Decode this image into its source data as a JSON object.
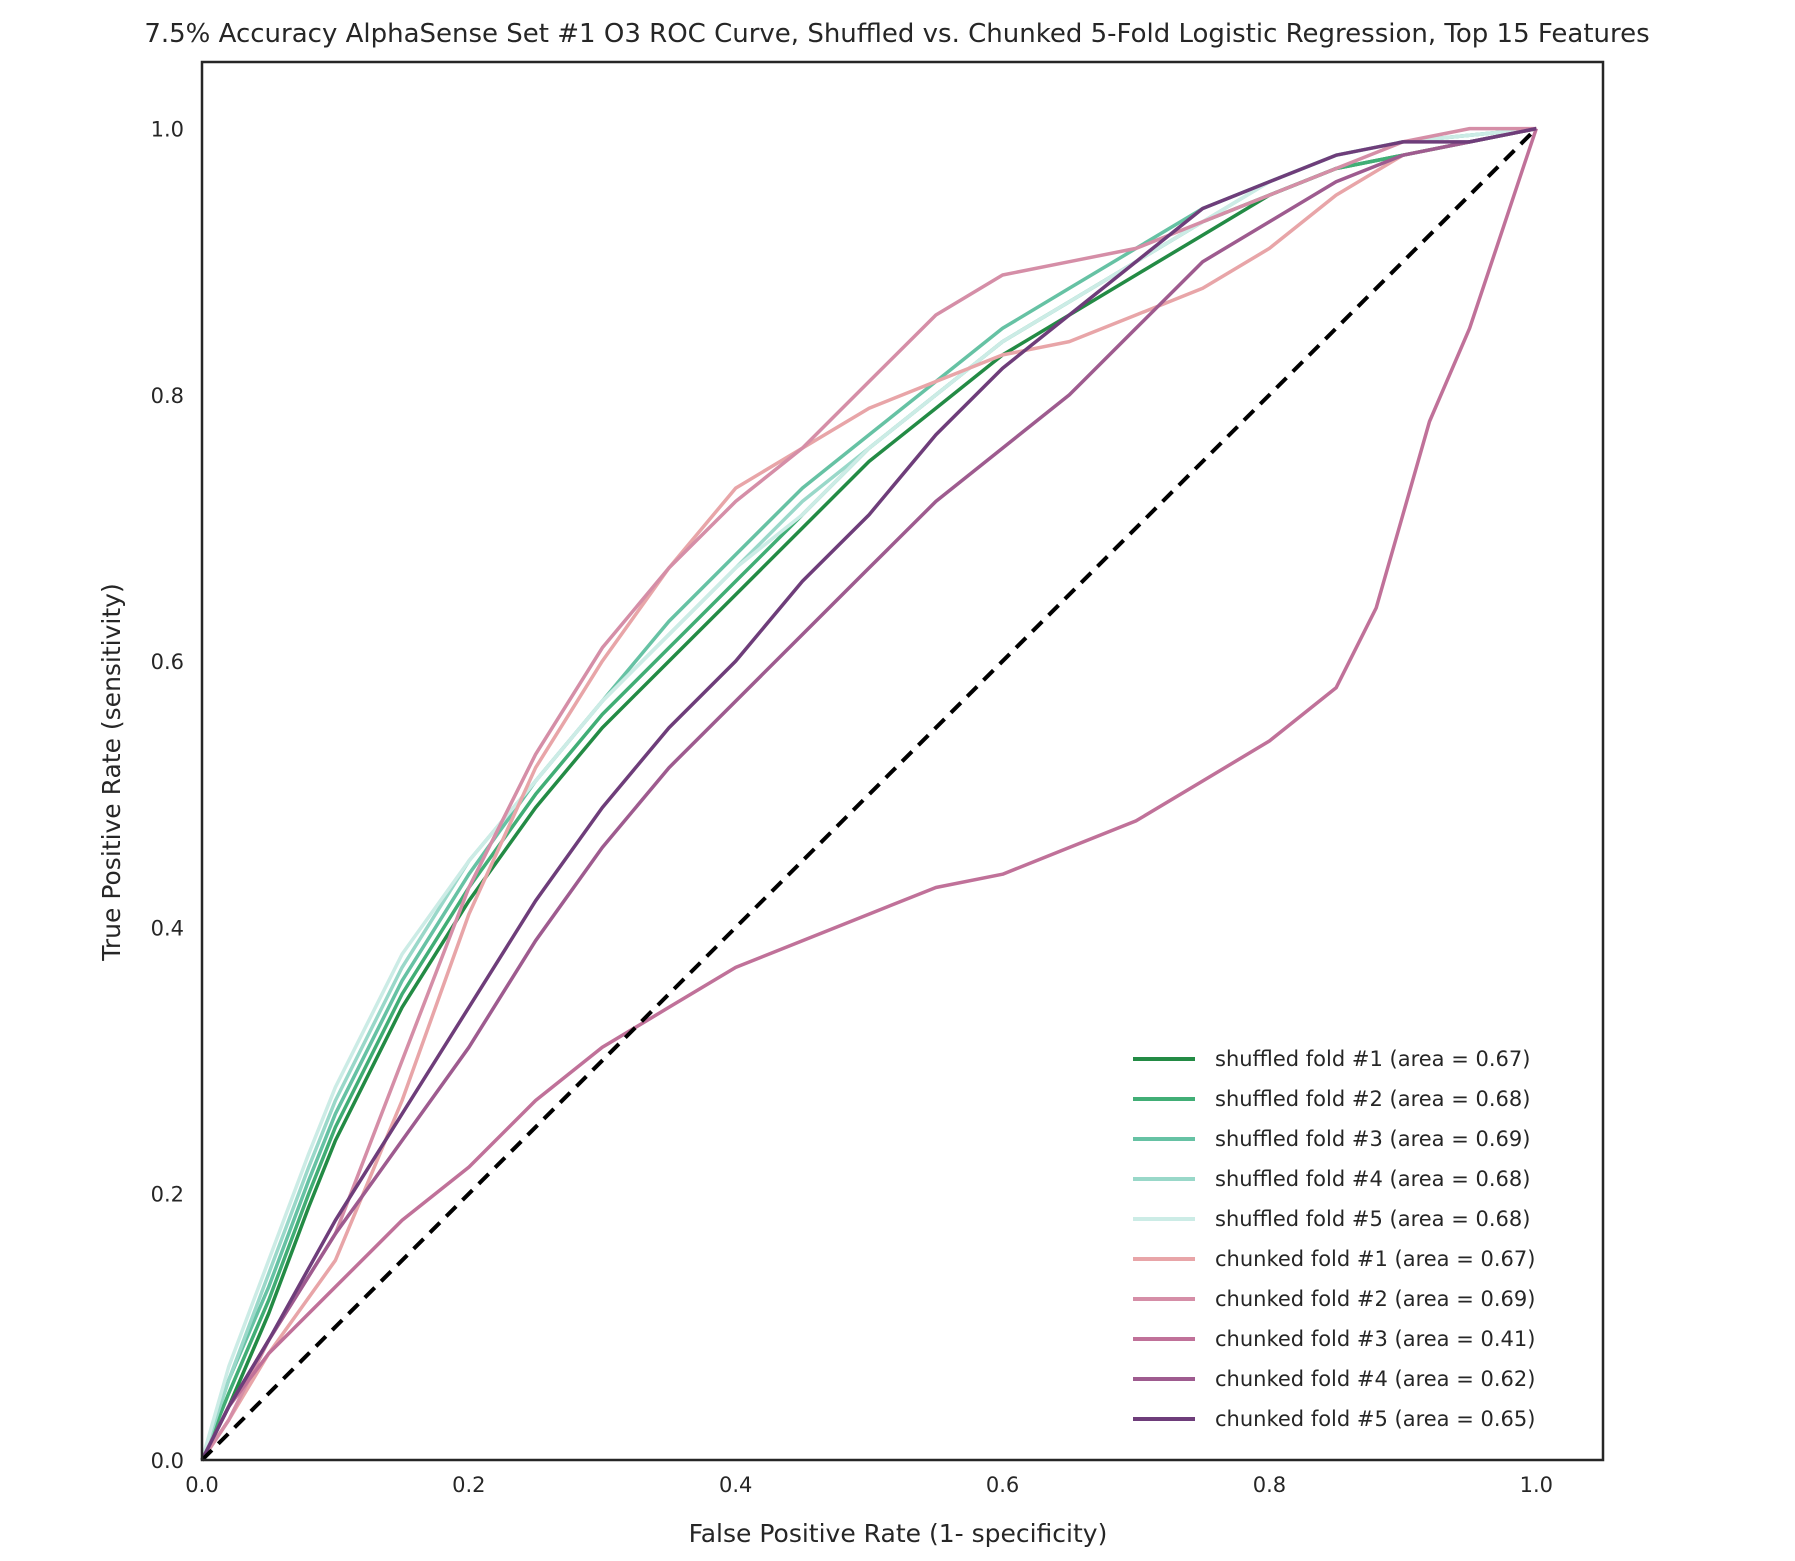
{
  "chart_data": {
    "type": "line",
    "title": "7.5% Accuracy AlphaSense Set #1 O3 ROC Curve, Shuffled vs. Chunked 5-Fold Logistic Regression, Top 15 Features",
    "xlabel": "False Positive Rate (1- specificity)",
    "ylabel": "True Positive Rate (sensitivity)",
    "xlim": [
      0.0,
      1.05
    ],
    "ylim": [
      0.0,
      1.05
    ],
    "xticks": [
      "0.0",
      "0.2",
      "0.4",
      "0.6",
      "0.8",
      "1.0"
    ],
    "yticks": [
      "0.0",
      "0.2",
      "0.4",
      "0.6",
      "0.8",
      "1.0"
    ],
    "grid": false,
    "legend_position": "lower-right",
    "diagonal": {
      "x": [
        0,
        1
      ],
      "y": [
        0,
        1
      ],
      "color": "#000000",
      "style": "dashed"
    },
    "series": [
      {
        "name": "shuffled fold #1 (area = 0.67)",
        "color": "#238b45",
        "x": [
          0,
          0.02,
          0.05,
          0.08,
          0.1,
          0.15,
          0.2,
          0.25,
          0.3,
          0.35,
          0.4,
          0.45,
          0.5,
          0.55,
          0.6,
          0.65,
          0.7,
          0.75,
          0.8,
          0.85,
          0.9,
          0.95,
          1.0
        ],
        "y": [
          0,
          0.04,
          0.11,
          0.19,
          0.24,
          0.34,
          0.42,
          0.49,
          0.55,
          0.6,
          0.65,
          0.7,
          0.75,
          0.79,
          0.83,
          0.86,
          0.89,
          0.92,
          0.95,
          0.97,
          0.98,
          0.99,
          1.0
        ]
      },
      {
        "name": "shuffled fold #2 (area = 0.68)",
        "color": "#41ae76",
        "x": [
          0,
          0.02,
          0.05,
          0.08,
          0.1,
          0.15,
          0.2,
          0.25,
          0.3,
          0.35,
          0.4,
          0.45,
          0.5,
          0.55,
          0.6,
          0.65,
          0.7,
          0.75,
          0.8,
          0.85,
          0.9,
          0.95,
          1.0
        ],
        "y": [
          0,
          0.05,
          0.12,
          0.2,
          0.25,
          0.35,
          0.43,
          0.5,
          0.56,
          0.61,
          0.66,
          0.71,
          0.76,
          0.8,
          0.84,
          0.87,
          0.9,
          0.93,
          0.95,
          0.97,
          0.98,
          0.99,
          1.0
        ]
      },
      {
        "name": "shuffled fold #3 (area = 0.69)",
        "color": "#66c2a4",
        "x": [
          0,
          0.02,
          0.05,
          0.08,
          0.1,
          0.15,
          0.2,
          0.25,
          0.3,
          0.35,
          0.4,
          0.45,
          0.5,
          0.55,
          0.6,
          0.65,
          0.7,
          0.75,
          0.8,
          0.85,
          0.9,
          0.95,
          1.0
        ],
        "y": [
          0,
          0.06,
          0.13,
          0.21,
          0.26,
          0.36,
          0.44,
          0.51,
          0.57,
          0.63,
          0.68,
          0.73,
          0.77,
          0.81,
          0.85,
          0.88,
          0.91,
          0.94,
          0.96,
          0.98,
          0.99,
          0.995,
          1.0
        ]
      },
      {
        "name": "shuffled fold #4 (area = 0.68)",
        "color": "#99d8c9",
        "x": [
          0,
          0.02,
          0.05,
          0.08,
          0.1,
          0.15,
          0.2,
          0.25,
          0.3,
          0.35,
          0.4,
          0.45,
          0.5,
          0.55,
          0.6,
          0.65,
          0.7,
          0.75,
          0.8,
          0.85,
          0.9,
          0.95,
          1.0
        ],
        "y": [
          0,
          0.06,
          0.14,
          0.22,
          0.27,
          0.37,
          0.45,
          0.51,
          0.57,
          0.62,
          0.67,
          0.72,
          0.76,
          0.8,
          0.84,
          0.87,
          0.9,
          0.93,
          0.96,
          0.98,
          0.99,
          0.995,
          1.0
        ]
      },
      {
        "name": "shuffled fold #5 (area = 0.68)",
        "color": "#ccece6",
        "x": [
          0,
          0.02,
          0.05,
          0.08,
          0.1,
          0.15,
          0.2,
          0.25,
          0.3,
          0.35,
          0.4,
          0.45,
          0.5,
          0.55,
          0.6,
          0.65,
          0.7,
          0.75,
          0.8,
          0.85,
          0.9,
          0.95,
          1.0
        ],
        "y": [
          0,
          0.07,
          0.15,
          0.23,
          0.28,
          0.38,
          0.45,
          0.51,
          0.57,
          0.62,
          0.67,
          0.71,
          0.76,
          0.8,
          0.84,
          0.87,
          0.9,
          0.93,
          0.96,
          0.98,
          0.99,
          0.995,
          1.0
        ]
      },
      {
        "name": "chunked fold #1 (area = 0.67)",
        "color": "#e8a5a8",
        "x": [
          0,
          0.02,
          0.05,
          0.1,
          0.15,
          0.2,
          0.25,
          0.3,
          0.35,
          0.4,
          0.45,
          0.5,
          0.55,
          0.6,
          0.65,
          0.7,
          0.75,
          0.8,
          0.85,
          0.9,
          0.95,
          1.0
        ],
        "y": [
          0,
          0.03,
          0.08,
          0.15,
          0.27,
          0.41,
          0.52,
          0.6,
          0.67,
          0.73,
          0.76,
          0.79,
          0.81,
          0.83,
          0.84,
          0.86,
          0.88,
          0.91,
          0.95,
          0.98,
          0.99,
          1.0
        ]
      },
      {
        "name": "chunked fold #2 (area = 0.69)",
        "color": "#d58ea7",
        "x": [
          0,
          0.02,
          0.05,
          0.1,
          0.15,
          0.2,
          0.25,
          0.3,
          0.35,
          0.4,
          0.45,
          0.5,
          0.55,
          0.6,
          0.65,
          0.7,
          0.75,
          0.8,
          0.85,
          0.9,
          0.95,
          1.0
        ],
        "y": [
          0,
          0.03,
          0.09,
          0.17,
          0.3,
          0.43,
          0.53,
          0.61,
          0.67,
          0.72,
          0.76,
          0.81,
          0.86,
          0.89,
          0.9,
          0.91,
          0.93,
          0.95,
          0.97,
          0.99,
          1.0,
          1.0
        ]
      },
      {
        "name": "chunked fold #3 (area = 0.41)",
        "color": "#c07199",
        "x": [
          0,
          0.02,
          0.05,
          0.1,
          0.15,
          0.2,
          0.25,
          0.3,
          0.35,
          0.4,
          0.45,
          0.5,
          0.55,
          0.6,
          0.65,
          0.7,
          0.75,
          0.8,
          0.85,
          0.88,
          0.9,
          0.92,
          0.95,
          0.97,
          0.99,
          1.0
        ],
        "y": [
          0,
          0.04,
          0.08,
          0.13,
          0.18,
          0.22,
          0.27,
          0.31,
          0.34,
          0.37,
          0.39,
          0.41,
          0.43,
          0.44,
          0.46,
          0.48,
          0.51,
          0.54,
          0.58,
          0.64,
          0.71,
          0.78,
          0.85,
          0.91,
          0.97,
          1.0
        ]
      },
      {
        "name": "chunked fold #4 (area = 0.62)",
        "color": "#9e5b8f",
        "x": [
          0,
          0.02,
          0.05,
          0.1,
          0.15,
          0.2,
          0.25,
          0.3,
          0.35,
          0.4,
          0.45,
          0.5,
          0.55,
          0.6,
          0.65,
          0.7,
          0.75,
          0.8,
          0.85,
          0.9,
          0.95,
          1.0
        ],
        "y": [
          0,
          0.04,
          0.09,
          0.17,
          0.24,
          0.31,
          0.39,
          0.46,
          0.52,
          0.57,
          0.62,
          0.67,
          0.72,
          0.76,
          0.8,
          0.85,
          0.9,
          0.93,
          0.96,
          0.98,
          0.99,
          1.0
        ]
      },
      {
        "name": "chunked fold #5 (area = 0.65)",
        "color": "#6e3d7a",
        "x": [
          0,
          0.02,
          0.05,
          0.1,
          0.15,
          0.2,
          0.25,
          0.3,
          0.35,
          0.4,
          0.45,
          0.5,
          0.55,
          0.6,
          0.65,
          0.7,
          0.75,
          0.8,
          0.85,
          0.9,
          0.95,
          1.0
        ],
        "y": [
          0,
          0.04,
          0.09,
          0.18,
          0.26,
          0.34,
          0.42,
          0.49,
          0.55,
          0.6,
          0.66,
          0.71,
          0.77,
          0.82,
          0.86,
          0.9,
          0.94,
          0.96,
          0.98,
          0.99,
          0.99,
          1.0
        ]
      }
    ]
  }
}
